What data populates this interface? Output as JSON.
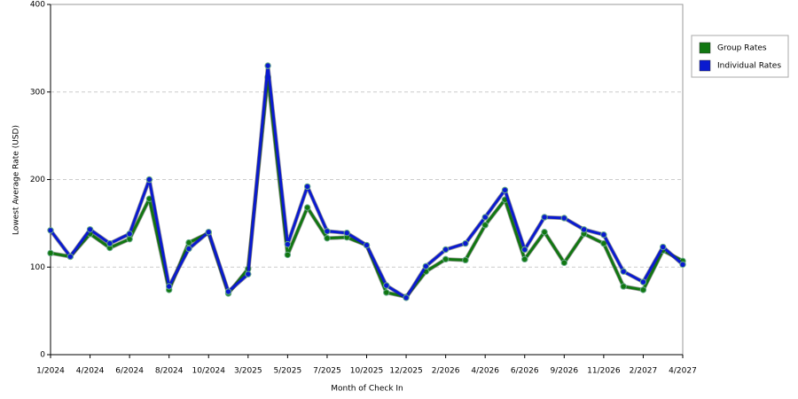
{
  "chart_data": {
    "type": "line",
    "x_label": "Month of Check In",
    "y_label": "Lowest Average Rate (USD)",
    "categories": [
      "1/2024",
      null,
      "4/2024",
      null,
      "6/2024",
      null,
      "8/2024",
      null,
      "10/2024",
      null,
      "3/2025",
      null,
      "5/2025",
      null,
      "7/2025",
      null,
      "10/2025",
      null,
      "12/2025",
      null,
      "2/2026",
      null,
      "4/2026",
      null,
      "6/2026",
      null,
      "9/2026",
      null,
      "11/2026",
      null,
      "2/2027",
      null,
      "4/2027"
    ],
    "series": [
      {
        "name": "Group Rates",
        "color": "#117711",
        "values": [
          116,
          112,
          138,
          122,
          132,
          178,
          74,
          128,
          139,
          70,
          98,
          317,
          114,
          168,
          133,
          134,
          125,
          71,
          66,
          95,
          109,
          108,
          148,
          177,
          109,
          140,
          105,
          138,
          127,
          78,
          74,
          119,
          107
        ]
      },
      {
        "name": "Individual Rates",
        "color": "#0a1ad0",
        "values": [
          142,
          112,
          143,
          127,
          138,
          200,
          78,
          121,
          140,
          72,
          92,
          330,
          126,
          192,
          141,
          139,
          125,
          79,
          65,
          101,
          120,
          127,
          157,
          188,
          120,
          157,
          156,
          143,
          137,
          95,
          83,
          123,
          103
        ]
      }
    ],
    "ylim": [
      0,
      400
    ],
    "yticks": [
      0,
      100,
      200,
      300,
      400
    ],
    "grid": true,
    "legend": "right"
  }
}
